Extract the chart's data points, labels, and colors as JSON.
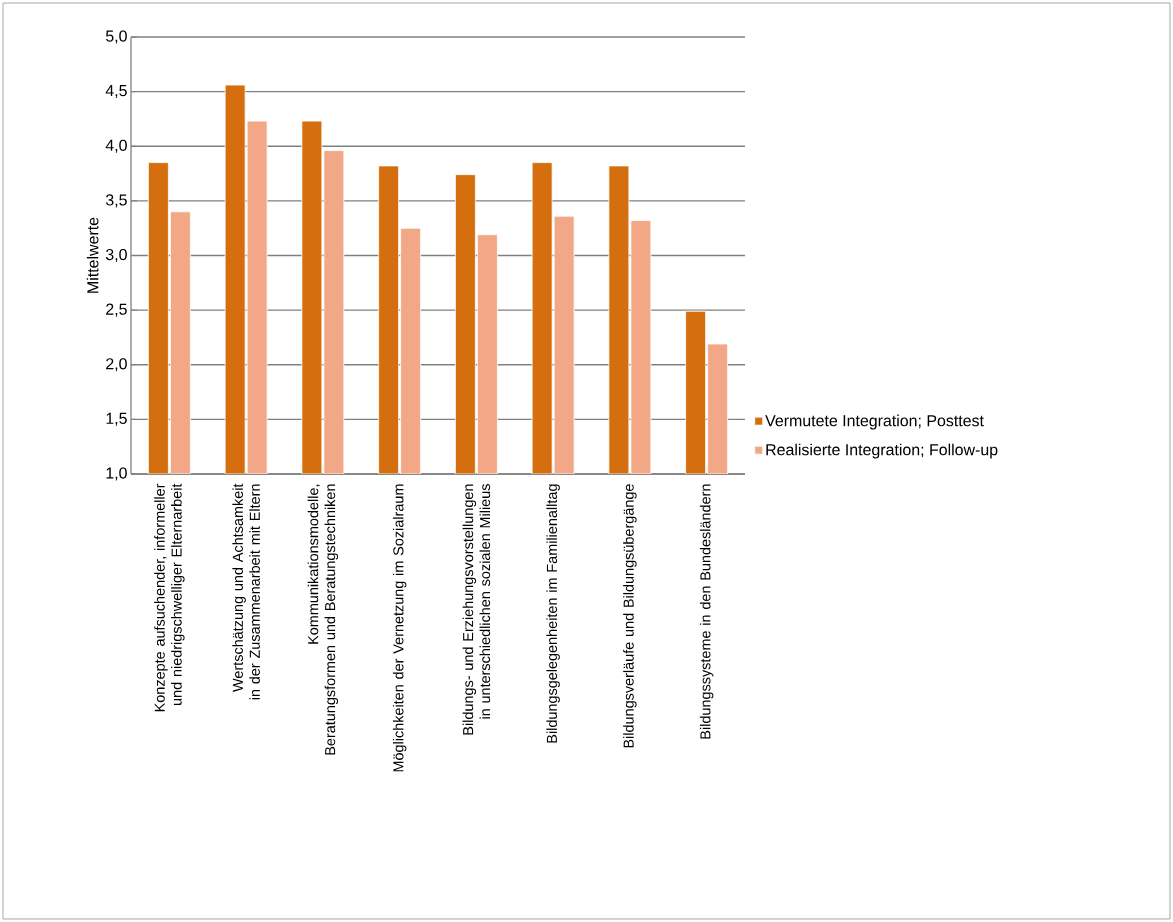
{
  "chart_data": {
    "type": "bar",
    "ylabel": "Mittelwerte",
    "categories": [
      "Konzepte aufsuchender, informeller und niedrigschwelliger Elternarbeit",
      "Wertschätzung und Achtsamkeit in der Zusammenarbeit mit Eltern",
      "Kommunikationsmodelle, Beratungsformen und Beratungstechniken",
      "Möglichkeiten der Vernetzung im Sozialraum",
      "Bildungs- und Erziehungsvorstellungen in unterschiedlichen sozialen Milieus",
      "Bildungsgelegenheiten im Familienalltag",
      "Bildungsverläufe und Bildungsübergänge",
      "Bildungssysteme in den Bundesländern"
    ],
    "series": [
      {
        "name": "Vermutete Integration; Posttest",
        "color": "#d46e0f",
        "values": [
          3.85,
          4.56,
          4.23,
          3.82,
          3.74,
          3.85,
          3.82,
          2.49
        ]
      },
      {
        "name": "Realisierte Integration; Follow-up",
        "color": "#f2a886",
        "values": [
          3.4,
          4.23,
          3.96,
          3.25,
          3.19,
          3.36,
          3.32,
          2.19
        ]
      }
    ],
    "ylim": [
      1,
      5
    ],
    "yticks": [
      {
        "value": 1,
        "label": "1,0"
      },
      {
        "value": 1.5,
        "label": "1,5"
      },
      {
        "value": 2,
        "label": "2,0"
      },
      {
        "value": 2.5,
        "label": "2,5"
      },
      {
        "value": 3,
        "label": "3,0"
      },
      {
        "value": 3.5,
        "label": "3,5"
      },
      {
        "value": 4,
        "label": "4,0"
      },
      {
        "value": 4.5,
        "label": "4,5"
      },
      {
        "value": 5,
        "label": "5,0"
      }
    ],
    "grid": "y",
    "legend": "right"
  }
}
